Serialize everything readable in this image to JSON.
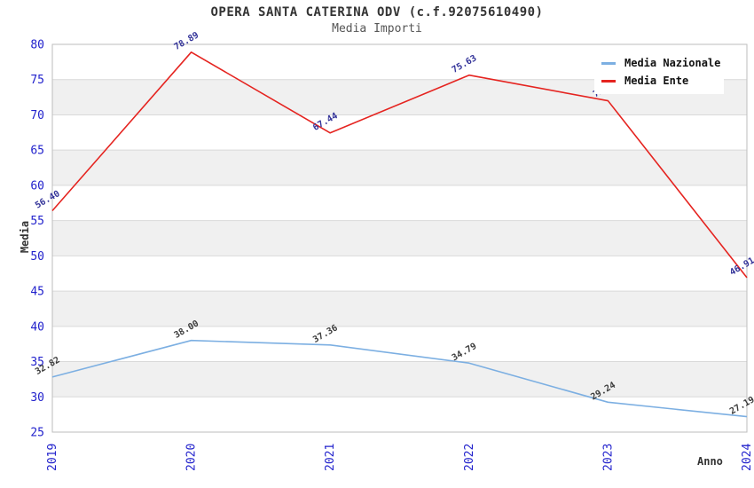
{
  "chart_data": {
    "type": "line",
    "title": "OPERA SANTA CATERINA ODV (c.f.92075610490)",
    "subtitle": "Media Importi",
    "xlabel": "Anno",
    "ylabel": "Media",
    "categories": [
      "2019",
      "2020",
      "2021",
      "2022",
      "2023",
      "2024"
    ],
    "ylim": [
      25,
      80
    ],
    "yticks": [
      25,
      30,
      35,
      40,
      45,
      50,
      55,
      60,
      65,
      70,
      75,
      80
    ],
    "ytick_step": 5,
    "grid": "horizontal gridlines with alternating gray bands",
    "legend_position": "top-right",
    "tick_color": "#2222cc",
    "gridline_color": "#d9d9d9",
    "band_color": "#f0f0f0",
    "plot_border_color": "#bdbdbd",
    "series": [
      {
        "name": "Media Nazionale",
        "color": "#7cafe2",
        "label_color": "#3c3c3c",
        "values": [
          32.82,
          38.0,
          37.36,
          34.79,
          29.24,
          27.19
        ],
        "point_labels": [
          "32.82",
          "38.00",
          "37.36",
          "34.79",
          "29.24",
          "27.19"
        ]
      },
      {
        "name": "Media Ente",
        "color": "#e52420",
        "label_color": "#333399",
        "values": [
          56.4,
          78.89,
          67.44,
          75.63,
          72.0,
          46.91
        ],
        "point_labels": [
          "56.40",
          "78.89",
          "67.44",
          "75.63",
          "72.0",
          "46.91"
        ]
      }
    ]
  }
}
